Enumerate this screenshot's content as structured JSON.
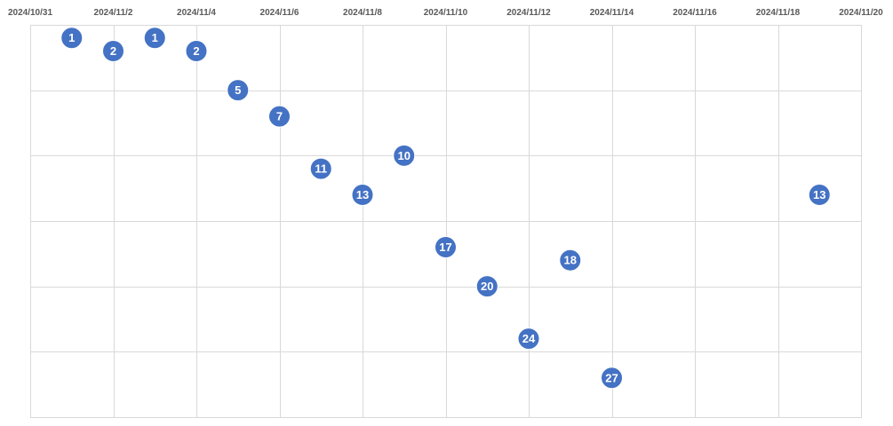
{
  "chart_data": {
    "type": "scatter",
    "title": "",
    "xlabel": "",
    "ylabel": "",
    "x_axis": {
      "type": "date",
      "min": "2024-10-31",
      "max": "2024-11-20",
      "tick_labels": [
        "2024/10/31",
        "2024/11/2",
        "2024/11/4",
        "2024/11/6",
        "2024/11/8",
        "2024/11/10",
        "2024/11/12",
        "2024/11/14",
        "2024/11/16",
        "2024/11/18",
        "2024/11/20"
      ],
      "position": "top"
    },
    "y_axis": {
      "min": 0,
      "max": 30,
      "reversed": true,
      "tick_labels_visible": false
    },
    "grid": true,
    "marker_color": "#4472c4",
    "points": [
      {
        "x": "2024-11-01",
        "y": 1,
        "label": "1"
      },
      {
        "x": "2024-11-02",
        "y": 2,
        "label": "2"
      },
      {
        "x": "2024-11-03",
        "y": 1,
        "label": "1"
      },
      {
        "x": "2024-11-04",
        "y": 2,
        "label": "2"
      },
      {
        "x": "2024-11-05",
        "y": 5,
        "label": "5"
      },
      {
        "x": "2024-11-06",
        "y": 7,
        "label": "7"
      },
      {
        "x": "2024-11-07",
        "y": 11,
        "label": "11"
      },
      {
        "x": "2024-11-08",
        "y": 13,
        "label": "13"
      },
      {
        "x": "2024-11-09",
        "y": 10,
        "label": "10"
      },
      {
        "x": "2024-11-10",
        "y": 17,
        "label": "17"
      },
      {
        "x": "2024-11-11",
        "y": 20,
        "label": "20"
      },
      {
        "x": "2024-11-12",
        "y": 24,
        "label": "24"
      },
      {
        "x": "2024-11-13",
        "y": 18,
        "label": "18"
      },
      {
        "x": "2024-11-14",
        "y": 27,
        "label": "27"
      },
      {
        "x": "2024-11-19",
        "y": 13,
        "label": "13"
      }
    ]
  }
}
